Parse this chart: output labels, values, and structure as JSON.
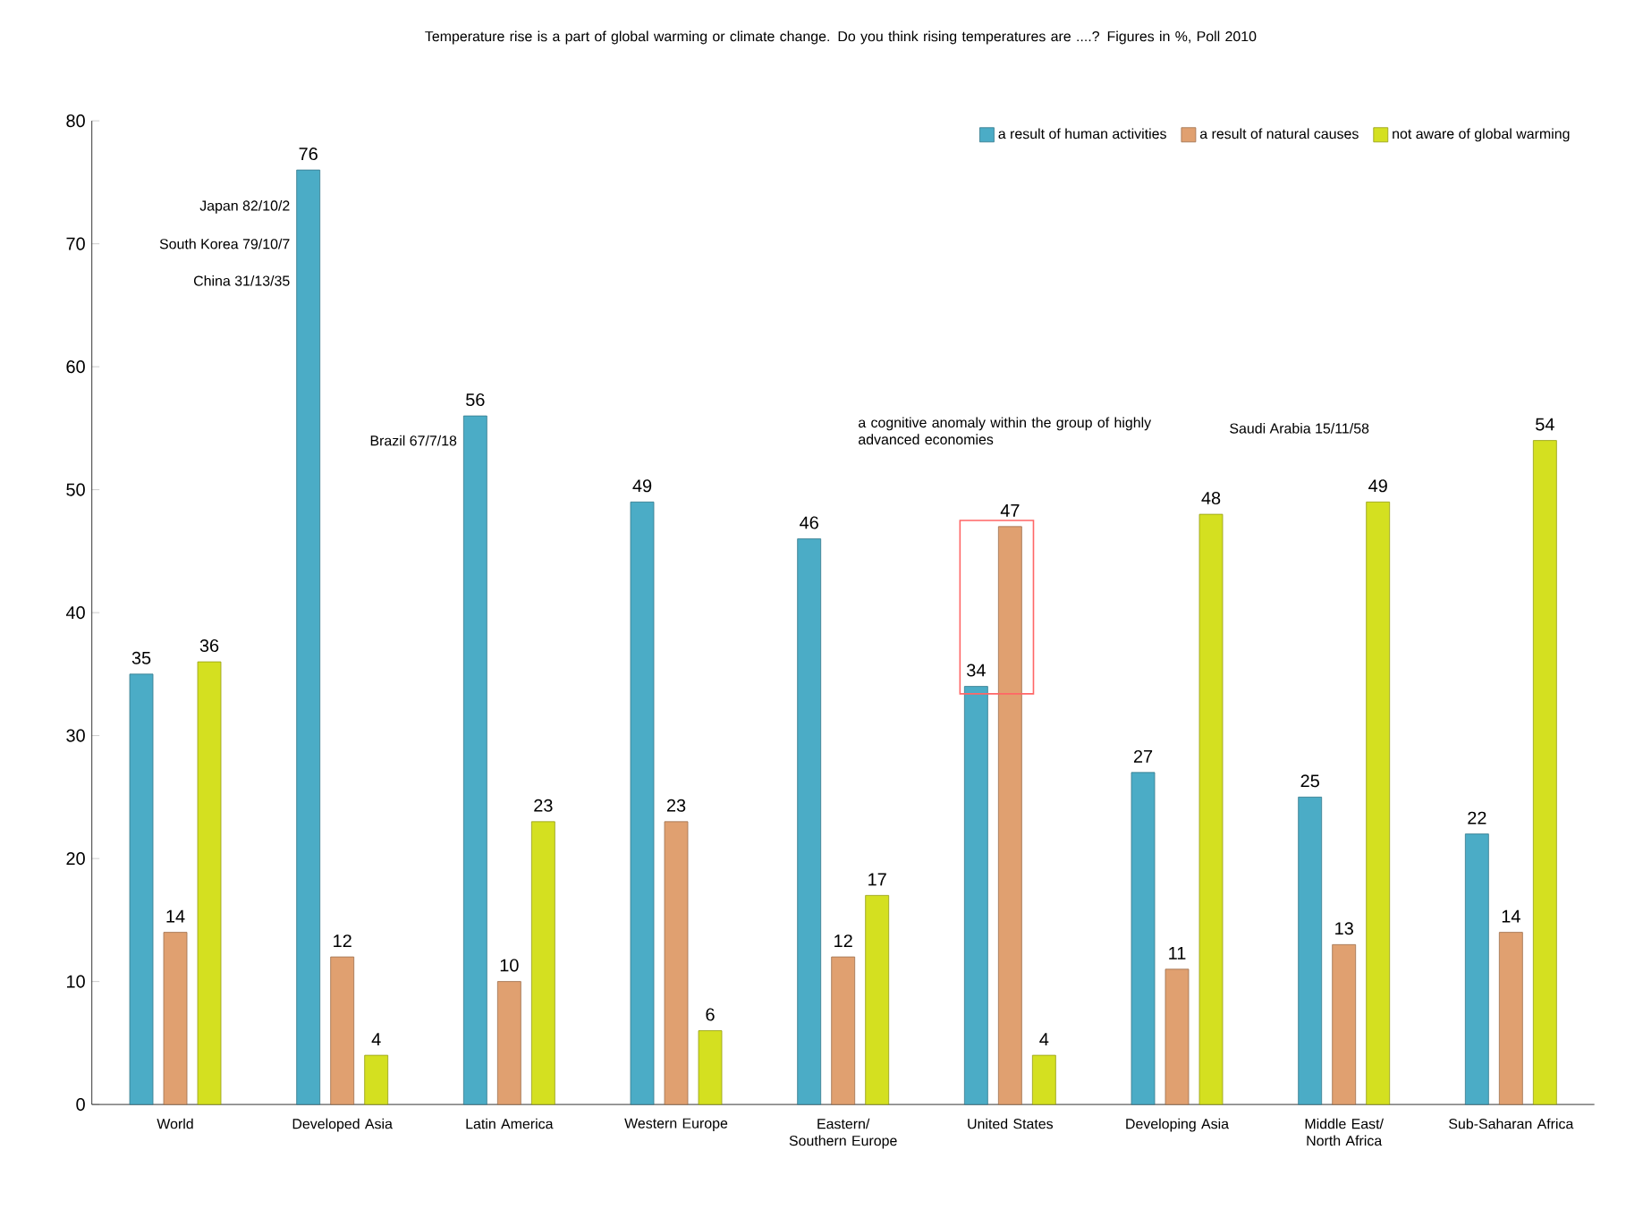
{
  "chart_data": {
    "type": "bar",
    "title": "Temperature rise is a part of global warming or climate change. Do you think rising temperatures are ....? Figures in %, Poll 2010",
    "categories": [
      "World",
      "Developed Asia",
      "Latin America",
      "Western Europe",
      "Eastern/ Southern Europe",
      "United States",
      "Developing Asia",
      "Middle East/ North Africa",
      "Sub-Saharan Africa"
    ],
    "series": [
      {
        "name": "a result of human activities",
        "color": "#4bacc6",
        "values": [
          35,
          76,
          56,
          49,
          46,
          34,
          27,
          25,
          22
        ]
      },
      {
        "name": "a result of natural causes",
        "color": "#e0a070",
        "values": [
          14,
          12,
          10,
          23,
          12,
          47,
          11,
          13,
          14
        ]
      },
      {
        "name": "not aware of global warming",
        "color": "#d4e020",
        "values": [
          36,
          4,
          23,
          6,
          17,
          4,
          48,
          49,
          54
        ]
      }
    ],
    "ylim": [
      0,
      80
    ],
    "yticks": [
      0,
      10,
      20,
      30,
      40,
      50,
      60,
      70,
      80
    ],
    "data_labels": true,
    "legend": "top right",
    "grid": false,
    "annotations": [
      "Japan 82/10/2",
      "South Korea 79/10/7",
      "China 31/13/35",
      "Brazil 67/7/18",
      "a cognitive anomaly within the group of highly advanced economies",
      "Saudi Arabia 15/11/58"
    ]
  }
}
